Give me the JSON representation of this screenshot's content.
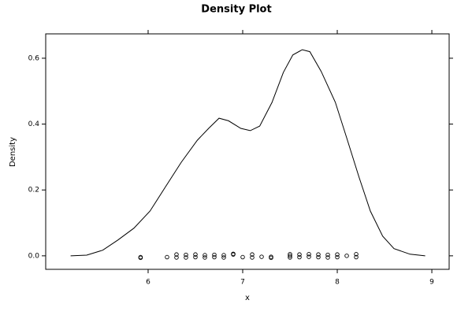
{
  "chart_data": {
    "type": "density",
    "title": "Density Plot",
    "x_label": "x",
    "y_label": "Density",
    "x": [
      5.18,
      5.35,
      5.52,
      5.68,
      5.85,
      6.02,
      6.18,
      6.35,
      6.52,
      6.64,
      6.75,
      6.85,
      6.98,
      7.08,
      7.18,
      7.31,
      7.43,
      7.53,
      7.63,
      7.71,
      7.83,
      7.98,
      8.1,
      8.23,
      8.35,
      8.48,
      8.6,
      8.77,
      8.93
    ],
    "values": [
      0.0,
      0.002,
      0.017,
      0.048,
      0.084,
      0.136,
      0.208,
      0.284,
      0.351,
      0.387,
      0.418,
      0.41,
      0.387,
      0.38,
      0.394,
      0.466,
      0.557,
      0.61,
      0.626,
      0.62,
      0.56,
      0.466,
      0.358,
      0.239,
      0.136,
      0.06,
      0.022,
      0.005,
      0.0
    ],
    "points_x": [
      5.92,
      5.92,
      6.2,
      6.3,
      6.3,
      6.4,
      6.4,
      6.5,
      6.5,
      6.6,
      6.6,
      6.7,
      6.7,
      6.8,
      6.8,
      6.9,
      6.9,
      7.0,
      7.1,
      7.1,
      7.2,
      7.3,
      7.3,
      7.5,
      7.5,
      7.5,
      7.6,
      7.6,
      7.7,
      7.7,
      7.8,
      7.8,
      7.9,
      7.9,
      8.0,
      8.0,
      8.1,
      8.2,
      8.2
    ],
    "points_y": [
      -0.004,
      -0.006,
      -0.004,
      0.004,
      -0.005,
      0.003,
      -0.005,
      0.004,
      -0.004,
      0.002,
      -0.005,
      0.003,
      -0.004,
      0.002,
      -0.005,
      0.006,
      0.004,
      -0.004,
      0.004,
      -0.005,
      -0.003,
      -0.003,
      -0.006,
      0.005,
      0.0,
      -0.005,
      0.004,
      -0.004,
      0.005,
      -0.003,
      0.004,
      -0.004,
      0.003,
      -0.005,
      0.004,
      -0.004,
      0.0,
      0.005,
      -0.004
    ],
    "color": "#000000",
    "xlim": [
      4.917,
      9.183
    ],
    "ylim": [
      -0.041,
      0.674
    ],
    "xticks": [
      6,
      7,
      8,
      9
    ],
    "yticks": [
      {
        "value": 0,
        "label": "0.0"
      },
      {
        "value": 0.2,
        "label": "0.2"
      },
      {
        "value": 0.4,
        "label": "0.4"
      },
      {
        "value": 0.6,
        "label": "0.6"
      }
    ]
  }
}
